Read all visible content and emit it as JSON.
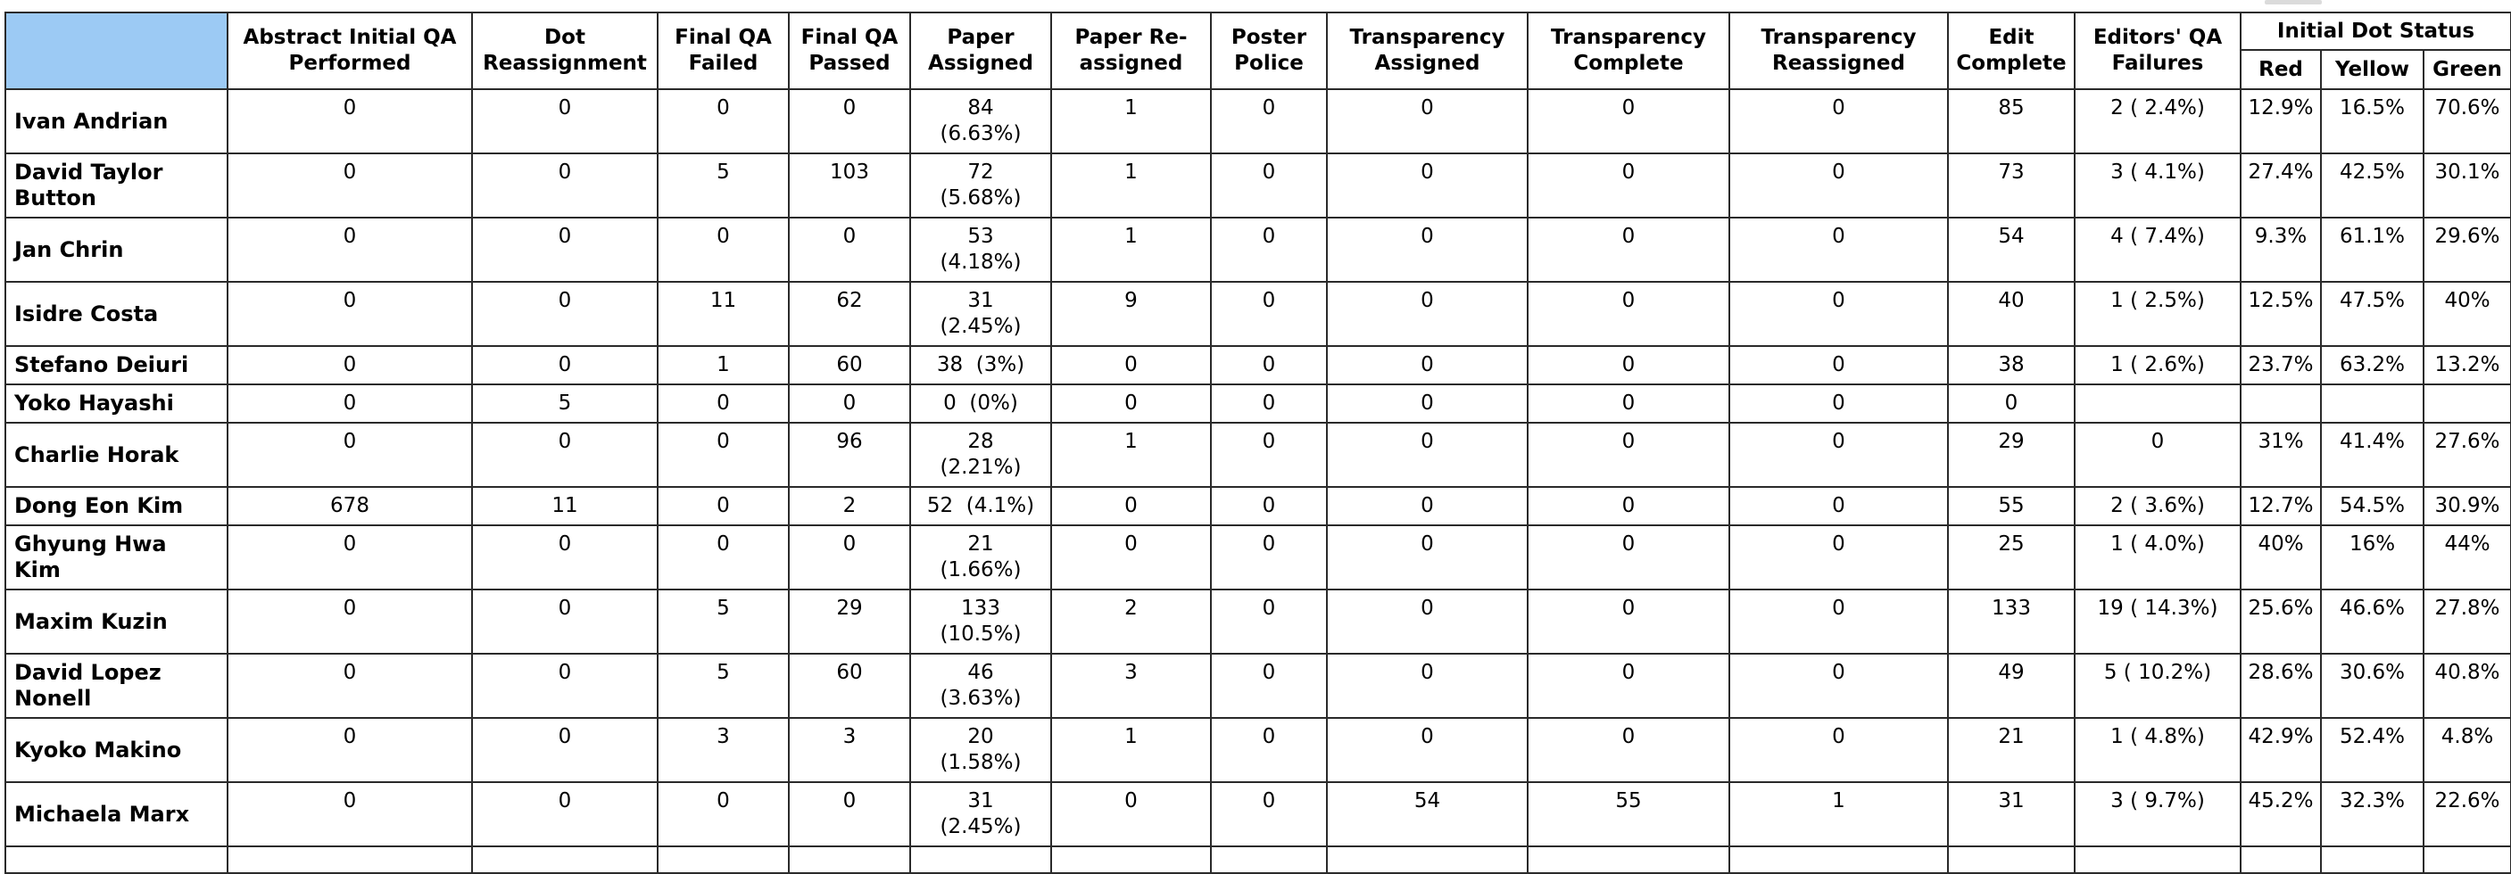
{
  "colors": {
    "corner_cell_blue": "#9CCAF4",
    "table_border": "#2a2a2a"
  },
  "table": {
    "corner_label": "",
    "columns": [
      {
        "key": "abstract_initial_qa",
        "label": "Abstract Initial QA\nPerformed"
      },
      {
        "key": "dot_reassignment",
        "label": "Dot\nReassignment"
      },
      {
        "key": "final_qa_failed",
        "label": "Final QA\nFailed"
      },
      {
        "key": "final_qa_passed",
        "label": "Final QA\nPassed"
      },
      {
        "key": "paper_assigned",
        "label": "Paper\nAssigned"
      },
      {
        "key": "paper_reassigned",
        "label": "Paper Re-\nassigned"
      },
      {
        "key": "poster_police",
        "label": "Poster\nPolice"
      },
      {
        "key": "transparency_assigned",
        "label": "Transparency\nAssigned"
      },
      {
        "key": "transparency_complete",
        "label": "Transparency\nComplete"
      },
      {
        "key": "transparency_reassigned",
        "label": "Transparency\nReassigned"
      },
      {
        "key": "edit_complete",
        "label": "Edit\nComplete"
      },
      {
        "key": "editors_qa_failures",
        "label": "Editors' QA\nFailures"
      }
    ],
    "dot_status": {
      "label": "Initial Dot Status",
      "sub": [
        "Red",
        "Yellow",
        "Green"
      ]
    },
    "rows": [
      {
        "name": "Ivan Andrian",
        "abstract_initial_qa": "0",
        "dot_reassignment": "0",
        "final_qa_failed": "0",
        "final_qa_passed": "0",
        "paper_assigned": "84\n(6.63%)",
        "paper_reassigned": "1",
        "poster_police": "0",
        "transparency_assigned": "0",
        "transparency_complete": "0",
        "transparency_reassigned": "0",
        "edit_complete": "85",
        "editors_qa_failures": "2 ( 2.4%)",
        "red": "12.9%",
        "yellow": "16.5%",
        "green": "70.6%"
      },
      {
        "name": "David Taylor\nButton",
        "abstract_initial_qa": "0",
        "dot_reassignment": "0",
        "final_qa_failed": "5",
        "final_qa_passed": "103",
        "paper_assigned": "72\n(5.68%)",
        "paper_reassigned": "1",
        "poster_police": "0",
        "transparency_assigned": "0",
        "transparency_complete": "0",
        "transparency_reassigned": "0",
        "edit_complete": "73",
        "editors_qa_failures": "3 ( 4.1%)",
        "red": "27.4%",
        "yellow": "42.5%",
        "green": "30.1%"
      },
      {
        "name": "Jan Chrin",
        "abstract_initial_qa": "0",
        "dot_reassignment": "0",
        "final_qa_failed": "0",
        "final_qa_passed": "0",
        "paper_assigned": "53\n(4.18%)",
        "paper_reassigned": "1",
        "poster_police": "0",
        "transparency_assigned": "0",
        "transparency_complete": "0",
        "transparency_reassigned": "0",
        "edit_complete": "54",
        "editors_qa_failures": "4 ( 7.4%)",
        "red": "9.3%",
        "yellow": "61.1%",
        "green": "29.6%"
      },
      {
        "name": "Isidre Costa",
        "abstract_initial_qa": "0",
        "dot_reassignment": "0",
        "final_qa_failed": "11",
        "final_qa_passed": "62",
        "paper_assigned": "31\n(2.45%)",
        "paper_reassigned": "9",
        "poster_police": "0",
        "transparency_assigned": "0",
        "transparency_complete": "0",
        "transparency_reassigned": "0",
        "edit_complete": "40",
        "editors_qa_failures": "1 ( 2.5%)",
        "red": "12.5%",
        "yellow": "47.5%",
        "green": "40%"
      },
      {
        "name": "Stefano Deiuri",
        "abstract_initial_qa": "0",
        "dot_reassignment": "0",
        "final_qa_failed": "1",
        "final_qa_passed": "60",
        "paper_assigned": "38  (3%)",
        "paper_reassigned": "0",
        "poster_police": "0",
        "transparency_assigned": "0",
        "transparency_complete": "0",
        "transparency_reassigned": "0",
        "edit_complete": "38",
        "editors_qa_failures": "1 ( 2.6%)",
        "red": "23.7%",
        "yellow": "63.2%",
        "green": "13.2%"
      },
      {
        "name": "Yoko Hayashi",
        "abstract_initial_qa": "0",
        "dot_reassignment": "5",
        "final_qa_failed": "0",
        "final_qa_passed": "0",
        "paper_assigned": "0  (0%)",
        "paper_reassigned": "0",
        "poster_police": "0",
        "transparency_assigned": "0",
        "transparency_complete": "0",
        "transparency_reassigned": "0",
        "edit_complete": "0",
        "editors_qa_failures": "",
        "red": "",
        "yellow": "",
        "green": ""
      },
      {
        "name": "Charlie Horak",
        "abstract_initial_qa": "0",
        "dot_reassignment": "0",
        "final_qa_failed": "0",
        "final_qa_passed": "96",
        "paper_assigned": "28\n(2.21%)",
        "paper_reassigned": "1",
        "poster_police": "0",
        "transparency_assigned": "0",
        "transparency_complete": "0",
        "transparency_reassigned": "0",
        "edit_complete": "29",
        "editors_qa_failures": "0",
        "red": "31%",
        "yellow": "41.4%",
        "green": "27.6%"
      },
      {
        "name": "Dong Eon Kim",
        "abstract_initial_qa": "678",
        "dot_reassignment": "11",
        "final_qa_failed": "0",
        "final_qa_passed": "2",
        "paper_assigned": "52  (4.1%)",
        "paper_reassigned": "0",
        "poster_police": "0",
        "transparency_assigned": "0",
        "transparency_complete": "0",
        "transparency_reassigned": "0",
        "edit_complete": "55",
        "editors_qa_failures": "2 ( 3.6%)",
        "red": "12.7%",
        "yellow": "54.5%",
        "green": "30.9%"
      },
      {
        "name": "Ghyung Hwa\nKim",
        "abstract_initial_qa": "0",
        "dot_reassignment": "0",
        "final_qa_failed": "0",
        "final_qa_passed": "0",
        "paper_assigned": "21\n(1.66%)",
        "paper_reassigned": "0",
        "poster_police": "0",
        "transparency_assigned": "0",
        "transparency_complete": "0",
        "transparency_reassigned": "0",
        "edit_complete": "25",
        "editors_qa_failures": "1 ( 4.0%)",
        "red": "40%",
        "yellow": "16%",
        "green": "44%"
      },
      {
        "name": "Maxim Kuzin",
        "abstract_initial_qa": "0",
        "dot_reassignment": "0",
        "final_qa_failed": "5",
        "final_qa_passed": "29",
        "paper_assigned": "133\n(10.5%)",
        "paper_reassigned": "2",
        "poster_police": "0",
        "transparency_assigned": "0",
        "transparency_complete": "0",
        "transparency_reassigned": "0",
        "edit_complete": "133",
        "editors_qa_failures": "19 ( 14.3%)",
        "red": "25.6%",
        "yellow": "46.6%",
        "green": "27.8%"
      },
      {
        "name": "David Lopez\nNonell",
        "abstract_initial_qa": "0",
        "dot_reassignment": "0",
        "final_qa_failed": "5",
        "final_qa_passed": "60",
        "paper_assigned": "46\n(3.63%)",
        "paper_reassigned": "3",
        "poster_police": "0",
        "transparency_assigned": "0",
        "transparency_complete": "0",
        "transparency_reassigned": "0",
        "edit_complete": "49",
        "editors_qa_failures": "5 ( 10.2%)",
        "red": "28.6%",
        "yellow": "30.6%",
        "green": "40.8%"
      },
      {
        "name": "Kyoko Makino",
        "abstract_initial_qa": "0",
        "dot_reassignment": "0",
        "final_qa_failed": "3",
        "final_qa_passed": "3",
        "paper_assigned": "20\n(1.58%)",
        "paper_reassigned": "1",
        "poster_police": "0",
        "transparency_assigned": "0",
        "transparency_complete": "0",
        "transparency_reassigned": "0",
        "edit_complete": "21",
        "editors_qa_failures": "1 ( 4.8%)",
        "red": "42.9%",
        "yellow": "52.4%",
        "green": "4.8%"
      },
      {
        "name": "Michaela Marx",
        "abstract_initial_qa": "0",
        "dot_reassignment": "0",
        "final_qa_failed": "0",
        "final_qa_passed": "0",
        "paper_assigned": "31\n(2.45%)",
        "paper_reassigned": "0",
        "poster_police": "0",
        "transparency_assigned": "54",
        "transparency_complete": "55",
        "transparency_reassigned": "1",
        "edit_complete": "31",
        "editors_qa_failures": "3 ( 9.7%)",
        "red": "45.2%",
        "yellow": "32.3%",
        "green": "22.6%"
      },
      {
        "name": "",
        "abstract_initial_qa": "",
        "dot_reassignment": "",
        "final_qa_failed": "",
        "final_qa_passed": "",
        "paper_assigned": "",
        "paper_reassigned": "",
        "poster_police": "",
        "transparency_assigned": "",
        "transparency_complete": "",
        "transparency_reassigned": "",
        "edit_complete": "",
        "editors_qa_failures": "",
        "red": "",
        "yellow": "",
        "green": ""
      }
    ]
  }
}
